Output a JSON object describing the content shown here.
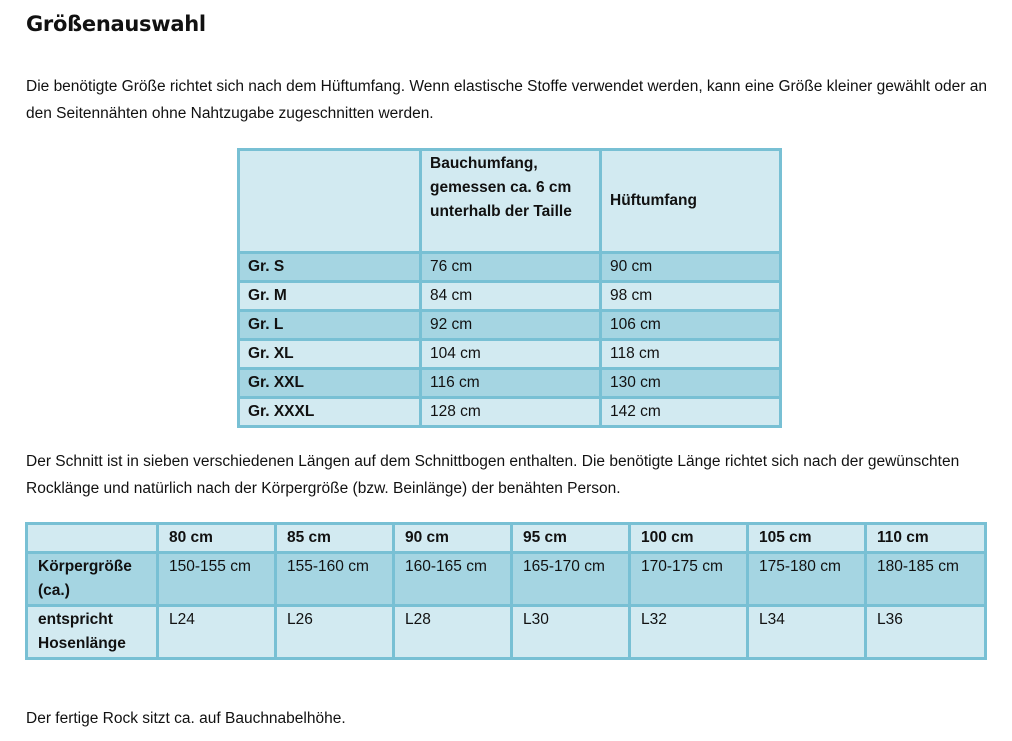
{
  "title": "Größenauswahl",
  "intro": "Die benötigte Größe richtet sich nach dem Hüftumfang. Wenn elastische Stoffe verwendet werden, kann eine Größe kleiner gewählt oder an den Seitennähten ohne Nahtzugabe zugeschnitten werden.",
  "size_table": {
    "headers": [
      "",
      "Bauchumfang, gemessen ca. 6 cm unterhalb der Taille",
      "Hüftumfang"
    ],
    "rows": [
      [
        "Gr. S",
        "76 cm",
        "90 cm"
      ],
      [
        "Gr. M",
        "84 cm",
        "98 cm"
      ],
      [
        "Gr. L",
        "92 cm",
        "106 cm"
      ],
      [
        "Gr. XL",
        "104 cm",
        "118 cm"
      ],
      [
        "Gr. XXL",
        "116 cm",
        "130 cm"
      ],
      [
        "Gr. XXXL",
        "128 cm",
        "142 cm"
      ]
    ]
  },
  "length_text": "Der Schnitt ist in sieben verschiedenen Längen auf dem Schnittbogen enthalten. Die benötigte Länge richtet sich nach der gewünschten Rocklänge und natürlich nach der Körpergröße (bzw. Beinlänge) der benähten Person.",
  "length_table": {
    "headers": [
      "",
      "80 cm",
      "85 cm",
      "90 cm",
      "95 cm",
      "100 cm",
      "105 cm",
      "110 cm"
    ],
    "rows": [
      [
        "Körpergröße (ca.)",
        "150-155 cm",
        "155-160 cm",
        "160-165 cm",
        "165-170 cm",
        "170-175 cm",
        "175-180 cm",
        "180-185 cm"
      ],
      [
        "entspricht Hosenlänge",
        "L24",
        "L26",
        "L28",
        "L30",
        "L32",
        "L34",
        "L36"
      ]
    ]
  },
  "footer": "Der fertige Rock sitzt ca. auf Bauchnabelhöhe.",
  "colors": {
    "light": "#d2eaf1",
    "dark": "#a5d5e2",
    "border": "#78c0d4"
  }
}
